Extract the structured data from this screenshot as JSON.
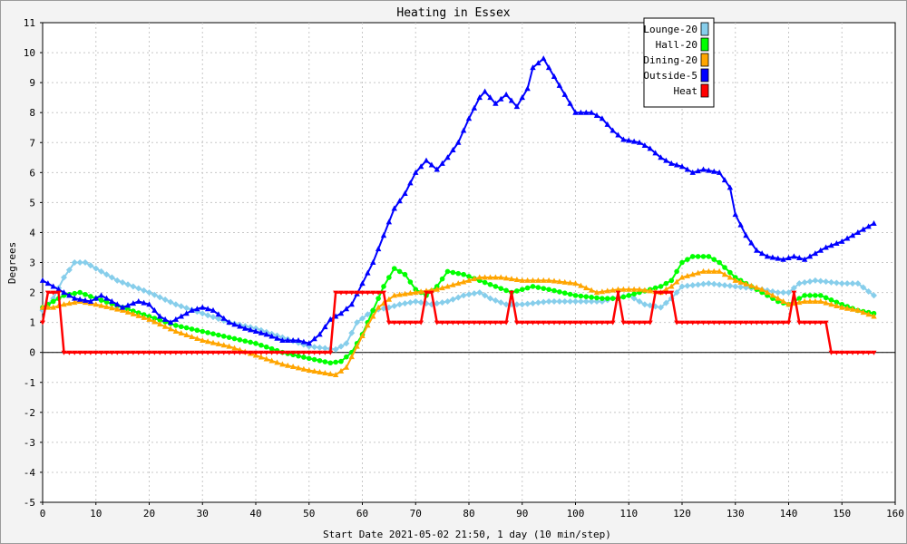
{
  "chart_data": {
    "type": "line",
    "title": "Heating in Essex",
    "xlabel": "Start Date 2021-05-02 21:50, 1 day (10 min/step)",
    "ylabel": "Degrees",
    "xlim": [
      0,
      160
    ],
    "ylim": [
      -5,
      11
    ],
    "x_ticks": [
      "0",
      "10",
      "20",
      "30",
      "40",
      "50",
      "60",
      "70",
      "80",
      "90",
      "100",
      "110",
      "120",
      "130",
      "140",
      "150",
      "160"
    ],
    "y_ticks": [
      "-5",
      "-4",
      "-3",
      "-2",
      "-1",
      "0",
      "1",
      "2",
      "3",
      "4",
      "5",
      "6",
      "7",
      "8",
      "9",
      "10",
      "11"
    ],
    "grid": true,
    "legend_position": "top-right",
    "series": [
      {
        "name": "Lounge-20",
        "color": "#87ceeb",
        "marker": "diamond",
        "points": [
          [
            0,
            1.4
          ],
          [
            2,
            1.8
          ],
          [
            4,
            2.5
          ],
          [
            6,
            3.0
          ],
          [
            8,
            3.0
          ],
          [
            10,
            2.8
          ],
          [
            14,
            2.4
          ],
          [
            20,
            2.0
          ],
          [
            25,
            1.6
          ],
          [
            30,
            1.3
          ],
          [
            35,
            1.0
          ],
          [
            40,
            0.8
          ],
          [
            45,
            0.5
          ],
          [
            50,
            0.2
          ],
          [
            55,
            0.1
          ],
          [
            57,
            0.3
          ],
          [
            59,
            1.0
          ],
          [
            62,
            1.4
          ],
          [
            65,
            1.5
          ],
          [
            67,
            1.6
          ],
          [
            70,
            1.7
          ],
          [
            73,
            1.6
          ],
          [
            76,
            1.7
          ],
          [
            79,
            1.9
          ],
          [
            82,
            2.0
          ],
          [
            84,
            1.8
          ],
          [
            87,
            1.6
          ],
          [
            90,
            1.6
          ],
          [
            95,
            1.7
          ],
          [
            100,
            1.7
          ],
          [
            105,
            1.7
          ],
          [
            107,
            1.8
          ],
          [
            110,
            1.9
          ],
          [
            113,
            1.6
          ],
          [
            116,
            1.5
          ],
          [
            118,
            1.8
          ],
          [
            120,
            2.2
          ],
          [
            125,
            2.3
          ],
          [
            130,
            2.2
          ],
          [
            135,
            2.1
          ],
          [
            138,
            2.0
          ],
          [
            140,
            2.0
          ],
          [
            142,
            2.3
          ],
          [
            145,
            2.4
          ],
          [
            150,
            2.3
          ],
          [
            153,
            2.3
          ],
          [
            156,
            1.9
          ]
        ]
      },
      {
        "name": "Hall-20",
        "color": "#00ff00",
        "marker": "circle",
        "points": [
          [
            0,
            1.5
          ],
          [
            2,
            1.7
          ],
          [
            4,
            1.9
          ],
          [
            7,
            2.0
          ],
          [
            10,
            1.8
          ],
          [
            15,
            1.5
          ],
          [
            20,
            1.2
          ],
          [
            25,
            0.9
          ],
          [
            30,
            0.7
          ],
          [
            35,
            0.5
          ],
          [
            40,
            0.3
          ],
          [
            45,
            0.0
          ],
          [
            50,
            -0.2
          ],
          [
            54,
            -0.35
          ],
          [
            56,
            -0.3
          ],
          [
            58,
            0.0
          ],
          [
            60,
            0.6
          ],
          [
            62,
            1.4
          ],
          [
            64,
            2.2
          ],
          [
            66,
            2.8
          ],
          [
            68,
            2.6
          ],
          [
            70,
            2.1
          ],
          [
            72,
            1.9
          ],
          [
            74,
            2.2
          ],
          [
            76,
            2.7
          ],
          [
            79,
            2.6
          ],
          [
            82,
            2.4
          ],
          [
            85,
            2.2
          ],
          [
            88,
            2.0
          ],
          [
            92,
            2.2
          ],
          [
            95,
            2.1
          ],
          [
            100,
            1.9
          ],
          [
            105,
            1.8
          ],
          [
            108,
            1.8
          ],
          [
            112,
            2.0
          ],
          [
            116,
            2.2
          ],
          [
            118,
            2.4
          ],
          [
            120,
            3.0
          ],
          [
            122,
            3.2
          ],
          [
            125,
            3.2
          ],
          [
            127,
            3.0
          ],
          [
            130,
            2.5
          ],
          [
            135,
            2.0
          ],
          [
            138,
            1.7
          ],
          [
            140,
            1.6
          ],
          [
            143,
            1.9
          ],
          [
            146,
            1.9
          ],
          [
            150,
            1.6
          ],
          [
            153,
            1.4
          ],
          [
            156,
            1.3
          ]
        ]
      },
      {
        "name": "Dining-20",
        "color": "#ffa500",
        "marker": "triangle",
        "points": [
          [
            0,
            1.5
          ],
          [
            2,
            1.5
          ],
          [
            4,
            1.6
          ],
          [
            7,
            1.7
          ],
          [
            10,
            1.6
          ],
          [
            15,
            1.4
          ],
          [
            20,
            1.1
          ],
          [
            25,
            0.7
          ],
          [
            30,
            0.4
          ],
          [
            35,
            0.2
          ],
          [
            40,
            -0.1
          ],
          [
            45,
            -0.4
          ],
          [
            50,
            -0.6
          ],
          [
            55,
            -0.75
          ],
          [
            57,
            -0.5
          ],
          [
            59,
            0.2
          ],
          [
            61,
            0.9
          ],
          [
            63,
            1.5
          ],
          [
            66,
            1.9
          ],
          [
            70,
            2.0
          ],
          [
            74,
            2.1
          ],
          [
            78,
            2.3
          ],
          [
            82,
            2.5
          ],
          [
            86,
            2.5
          ],
          [
            90,
            2.4
          ],
          [
            95,
            2.4
          ],
          [
            100,
            2.3
          ],
          [
            104,
            2.0
          ],
          [
            108,
            2.1
          ],
          [
            112,
            2.1
          ],
          [
            116,
            2.0
          ],
          [
            118,
            2.2
          ],
          [
            120,
            2.5
          ],
          [
            124,
            2.7
          ],
          [
            127,
            2.7
          ],
          [
            130,
            2.4
          ],
          [
            135,
            2.1
          ],
          [
            138,
            1.8
          ],
          [
            140,
            1.6
          ],
          [
            143,
            1.7
          ],
          [
            146,
            1.7
          ],
          [
            150,
            1.5
          ],
          [
            153,
            1.4
          ],
          [
            156,
            1.2
          ]
        ]
      },
      {
        "name": "Outside-5",
        "color": "#0000ff",
        "marker": "triangle",
        "points": [
          [
            0,
            2.4
          ],
          [
            3,
            2.1
          ],
          [
            6,
            1.8
          ],
          [
            9,
            1.7
          ],
          [
            11,
            1.9
          ],
          [
            13,
            1.7
          ],
          [
            15,
            1.5
          ],
          [
            18,
            1.7
          ],
          [
            20,
            1.6
          ],
          [
            22,
            1.2
          ],
          [
            24,
            1.0
          ],
          [
            26,
            1.2
          ],
          [
            28,
            1.4
          ],
          [
            30,
            1.5
          ],
          [
            32,
            1.4
          ],
          [
            35,
            1.0
          ],
          [
            38,
            0.8
          ],
          [
            42,
            0.6
          ],
          [
            45,
            0.4
          ],
          [
            48,
            0.4
          ],
          [
            50,
            0.3
          ],
          [
            52,
            0.6
          ],
          [
            54,
            1.1
          ],
          [
            56,
            1.3
          ],
          [
            58,
            1.6
          ],
          [
            60,
            2.3
          ],
          [
            62,
            3.0
          ],
          [
            64,
            3.9
          ],
          [
            66,
            4.8
          ],
          [
            68,
            5.3
          ],
          [
            70,
            6.0
          ],
          [
            72,
            6.4
          ],
          [
            74,
            6.1
          ],
          [
            76,
            6.5
          ],
          [
            78,
            7.0
          ],
          [
            80,
            7.8
          ],
          [
            82,
            8.5
          ],
          [
            83,
            8.7
          ],
          [
            85,
            8.3
          ],
          [
            87,
            8.6
          ],
          [
            89,
            8.2
          ],
          [
            91,
            8.8
          ],
          [
            92,
            9.5
          ],
          [
            94,
            9.8
          ],
          [
            96,
            9.2
          ],
          [
            98,
            8.6
          ],
          [
            100,
            8.0
          ],
          [
            103,
            8.0
          ],
          [
            105,
            7.8
          ],
          [
            107,
            7.4
          ],
          [
            109,
            7.1
          ],
          [
            112,
            7.0
          ],
          [
            114,
            6.8
          ],
          [
            116,
            6.5
          ],
          [
            118,
            6.3
          ],
          [
            120,
            6.2
          ],
          [
            122,
            6.0
          ],
          [
            124,
            6.1
          ],
          [
            127,
            6.0
          ],
          [
            129,
            5.5
          ],
          [
            130,
            4.6
          ],
          [
            132,
            3.9
          ],
          [
            134,
            3.4
          ],
          [
            136,
            3.2
          ],
          [
            139,
            3.1
          ],
          [
            141,
            3.2
          ],
          [
            143,
            3.1
          ],
          [
            145,
            3.3
          ],
          [
            147,
            3.5
          ],
          [
            150,
            3.7
          ],
          [
            152,
            3.9
          ],
          [
            154,
            4.1
          ],
          [
            156,
            4.3
          ]
        ]
      },
      {
        "name": "Heat",
        "color": "#ff0000",
        "marker": "triangle-down",
        "points": [
          [
            0,
            1.0
          ],
          [
            1,
            2.0
          ],
          [
            3,
            2.0
          ],
          [
            4,
            0.0
          ],
          [
            54,
            0.0
          ],
          [
            55,
            2.0
          ],
          [
            64,
            2.0
          ],
          [
            65,
            1.0
          ],
          [
            71,
            1.0
          ],
          [
            72,
            2.0
          ],
          [
            73,
            2.0
          ],
          [
            74,
            1.0
          ],
          [
            87,
            1.0
          ],
          [
            88,
            2.0
          ],
          [
            89,
            1.0
          ],
          [
            107,
            1.0
          ],
          [
            108,
            2.0
          ],
          [
            109,
            1.0
          ],
          [
            114,
            1.0
          ],
          [
            115,
            2.0
          ],
          [
            118,
            2.0
          ],
          [
            119,
            1.0
          ],
          [
            140,
            1.0
          ],
          [
            141,
            2.0
          ],
          [
            142,
            1.0
          ],
          [
            147,
            1.0
          ],
          [
            148,
            0.0
          ],
          [
            156,
            0.0
          ]
        ]
      }
    ]
  }
}
